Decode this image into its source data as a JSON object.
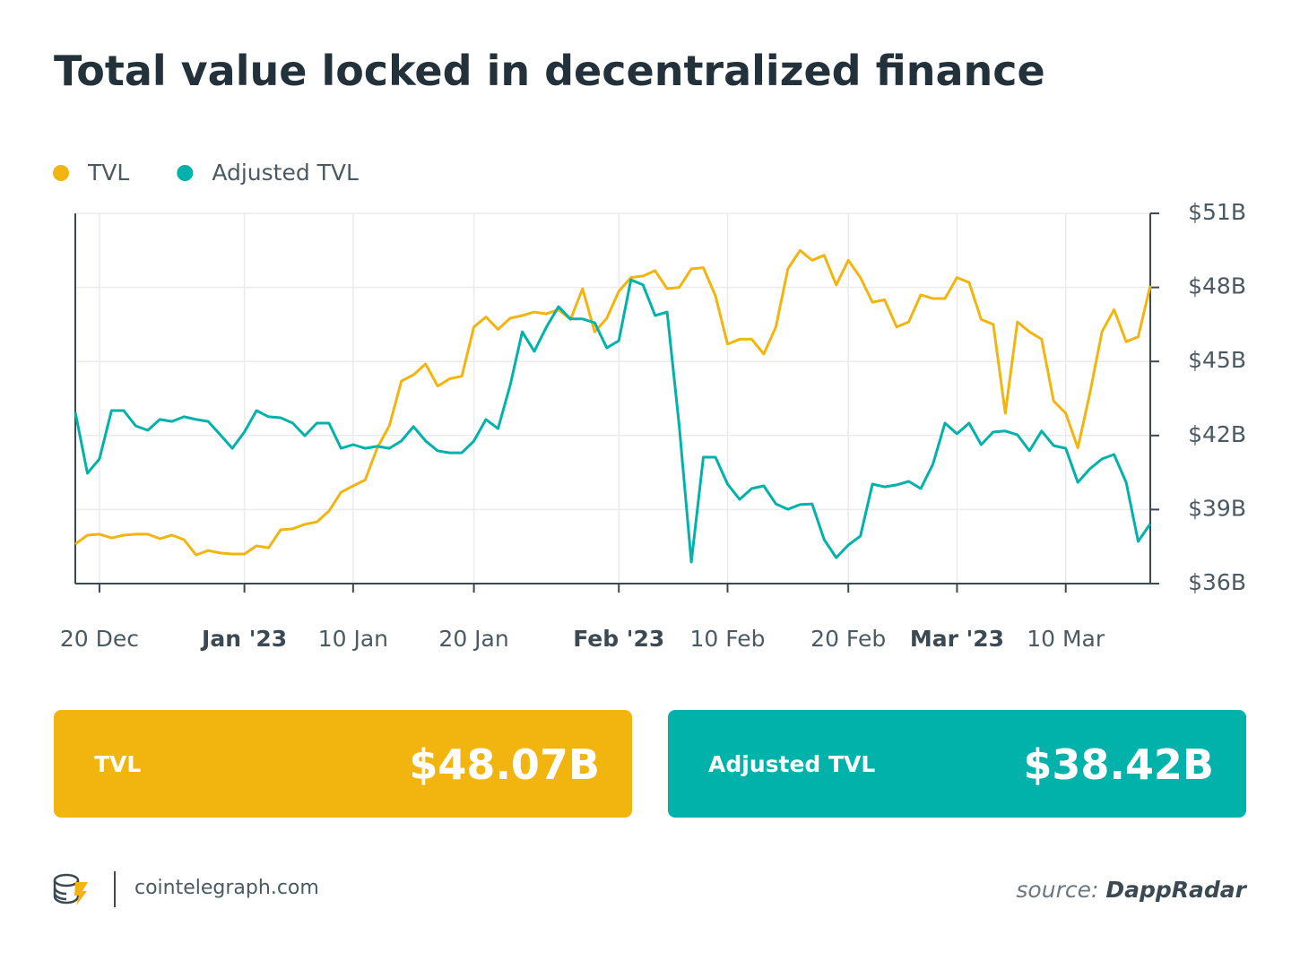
{
  "header": {
    "title": "Total value locked in decentralized finance"
  },
  "chart_data": {
    "type": "line",
    "x": [
      "2022-12-18",
      "2022-12-19",
      "2022-12-20",
      "2022-12-21",
      "2022-12-22",
      "2022-12-23",
      "2022-12-24",
      "2022-12-25",
      "2022-12-26",
      "2022-12-27",
      "2022-12-28",
      "2022-12-29",
      "2022-12-30",
      "2022-12-31",
      "2023-01-01",
      "2023-01-02",
      "2023-01-03",
      "2023-01-04",
      "2023-01-05",
      "2023-01-06",
      "2023-01-07",
      "2023-01-08",
      "2023-01-09",
      "2023-01-10",
      "2023-01-11",
      "2023-01-12",
      "2023-01-13",
      "2023-01-14",
      "2023-01-15",
      "2023-01-16",
      "2023-01-17",
      "2023-01-18",
      "2023-01-19",
      "2023-01-20",
      "2023-01-21",
      "2023-01-22",
      "2023-01-23",
      "2023-01-24",
      "2023-01-25",
      "2023-01-26",
      "2023-01-27",
      "2023-01-28",
      "2023-01-29",
      "2023-01-30",
      "2023-01-31",
      "2023-02-01",
      "2023-02-02",
      "2023-02-03",
      "2023-02-04",
      "2023-02-05",
      "2023-02-06",
      "2023-02-07",
      "2023-02-08",
      "2023-02-09",
      "2023-02-10",
      "2023-02-11",
      "2023-02-12",
      "2023-02-13",
      "2023-02-14",
      "2023-02-15",
      "2023-02-16",
      "2023-02-17",
      "2023-02-18",
      "2023-02-19",
      "2023-02-20",
      "2023-02-21",
      "2023-02-22",
      "2023-02-23",
      "2023-02-24",
      "2023-02-25",
      "2023-02-26",
      "2023-02-27",
      "2023-02-28",
      "2023-03-01",
      "2023-03-02",
      "2023-03-03",
      "2023-03-04",
      "2023-03-05",
      "2023-03-06",
      "2023-03-07",
      "2023-03-08",
      "2023-03-09",
      "2023-03-10",
      "2023-03-11",
      "2023-03-12",
      "2023-03-13",
      "2023-03-14",
      "2023-03-15",
      "2023-03-16",
      "2023-03-17"
    ],
    "series": [
      {
        "name": "TVL",
        "color": "#f2b50f",
        "values": [
          37.6,
          37.96,
          38.0,
          37.85,
          37.96,
          38.0,
          38.0,
          37.82,
          37.96,
          37.78,
          37.16,
          37.34,
          37.24,
          37.2,
          37.2,
          37.53,
          37.45,
          38.18,
          38.22,
          38.4,
          38.5,
          38.94,
          39.7,
          39.96,
          40.2,
          41.5,
          42.4,
          44.2,
          44.46,
          44.9,
          44.0,
          44.3,
          44.4,
          46.4,
          46.8,
          46.3,
          46.75,
          46.86,
          47.0,
          46.93,
          47.1,
          46.7,
          47.95,
          46.2,
          46.75,
          47.84,
          48.4,
          48.46,
          48.68,
          47.95,
          48.0,
          48.75,
          48.8,
          47.66,
          45.7,
          45.9,
          45.9,
          45.3,
          46.4,
          48.75,
          49.5,
          49.1,
          49.3,
          48.1,
          49.1,
          48.4,
          47.4,
          47.5,
          46.4,
          46.6,
          47.7,
          47.55,
          47.55,
          48.4,
          48.2,
          46.7,
          46.5,
          42.9,
          46.6,
          46.2,
          45.9,
          43.4,
          42.9,
          41.5,
          43.7,
          46.2,
          47.1,
          45.8,
          46.0,
          48.07
        ]
      },
      {
        "name": "Adjusted TVL",
        "color": "#00b2a9",
        "values": [
          42.94,
          40.47,
          41.05,
          43.01,
          43.01,
          42.39,
          42.21,
          42.65,
          42.57,
          42.76,
          42.65,
          42.57,
          42.03,
          41.48,
          42.14,
          43.01,
          42.76,
          42.72,
          42.5,
          41.99,
          42.5,
          42.5,
          41.48,
          41.63,
          41.48,
          41.56,
          41.48,
          41.78,
          42.36,
          41.78,
          41.38,
          41.3,
          41.3,
          41.78,
          42.65,
          42.28,
          44.03,
          46.2,
          45.41,
          46.39,
          47.22,
          46.72,
          46.72,
          46.57,
          45.55,
          45.84,
          48.31,
          48.1,
          46.86,
          47.0,
          42.39,
          36.87,
          41.12,
          41.12,
          40.03,
          39.41,
          39.85,
          39.96,
          39.23,
          39.01,
          39.2,
          39.23,
          37.78,
          37.05,
          37.56,
          37.93,
          40.03,
          39.92,
          40.0,
          40.14,
          39.85,
          40.83,
          42.5,
          42.07,
          42.5,
          41.63,
          42.14,
          42.18,
          42.03,
          41.38,
          42.18,
          41.59,
          41.48,
          40.1,
          40.65,
          41.05,
          41.23,
          40.1,
          37.71,
          38.42
        ]
      }
    ],
    "ylim": [
      36,
      51
    ],
    "yticks": [
      {
        "value": 36,
        "label": "$36B"
      },
      {
        "value": 39,
        "label": "$39B"
      },
      {
        "value": 42,
        "label": "$42B"
      },
      {
        "value": 45,
        "label": "$45B"
      },
      {
        "value": 48,
        "label": "$48B"
      },
      {
        "value": 51,
        "label": "$51B"
      }
    ],
    "xticks": [
      {
        "value": "2022-12-20",
        "label": "20 Dec"
      },
      {
        "value": "2023-01-01",
        "label": "Jan '23"
      },
      {
        "value": "2023-01-10",
        "label": "10 Jan"
      },
      {
        "value": "2023-01-20",
        "label": "20 Jan"
      },
      {
        "value": "2023-02-01",
        "label": "Feb '23"
      },
      {
        "value": "2023-02-10",
        "label": "10 Feb"
      },
      {
        "value": "2023-02-20",
        "label": "20 Feb"
      },
      {
        "value": "2023-03-01",
        "label": "Mar '23"
      },
      {
        "value": "2023-03-10",
        "label": "10 Mar"
      }
    ],
    "grid": true,
    "y_axis_side": "right"
  },
  "cards": [
    {
      "label": "TVL",
      "value": "$48.07B",
      "color": "#f2b50f"
    },
    {
      "label": "Adjusted TVL",
      "value": "$38.42B",
      "color": "#00b2a9"
    }
  ],
  "footer": {
    "site": "cointelegraph.com",
    "source_prefix": "source:",
    "source": "DappRadar"
  }
}
